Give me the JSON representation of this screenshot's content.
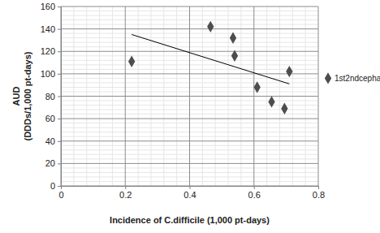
{
  "chart_data": {
    "type": "scatter",
    "xlabel": "Incidence of C.difficile (1,000 pt-days)",
    "ylabel": [
      "AUD",
      "(DDDs/1,000 pt-days)"
    ],
    "xlim": [
      0,
      0.8
    ],
    "xticks": [
      0,
      0.2,
      0.4,
      0.6,
      0.8
    ],
    "ylim": [
      0,
      160
    ],
    "yticks": [
      0,
      20,
      40,
      60,
      80,
      100,
      120,
      140,
      160
    ],
    "grid": true,
    "legend": "right",
    "series": [
      {
        "name": "1st2ndcepha",
        "color": "#4d4d4d",
        "marker": "diamond",
        "x": [
          0.22,
          0.465,
          0.535,
          0.54,
          0.61,
          0.655,
          0.695,
          0.71
        ],
        "values": [
          111,
          142,
          132,
          116,
          88,
          75,
          69,
          102
        ]
      }
    ],
    "trendline": {
      "color": "#000000",
      "line_style": "solid",
      "x": [
        0.22,
        0.71
      ],
      "values": [
        135,
        91
      ]
    }
  }
}
